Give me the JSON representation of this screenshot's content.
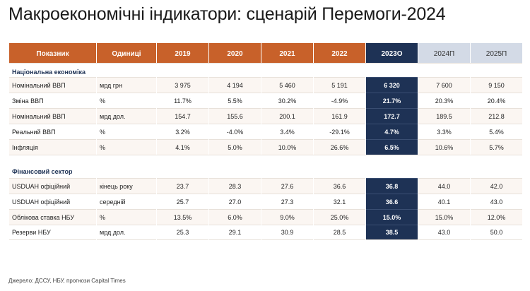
{
  "title": "Макроекономічні індикатори: сценарій Перемоги-2024",
  "header": {
    "indicator": "Показник",
    "units": "Одиниці",
    "years": [
      "2019",
      "2020",
      "2021",
      "2022",
      "2023О",
      "2024П",
      "2025П"
    ]
  },
  "sections": [
    {
      "name": "Національна економіка",
      "rows": [
        {
          "label": "Номінальний ВВП",
          "unit": "мрд грн",
          "values": [
            "3 975",
            "4 194",
            "5 460",
            "5 191",
            "6 320",
            "7 600",
            "9 150"
          ]
        },
        {
          "label": "Зміна ВВП",
          "unit": "%",
          "values": [
            "11.7%",
            "5.5%",
            "30.2%",
            "-4.9%",
            "21.7%",
            "20.3%",
            "20.4%"
          ]
        },
        {
          "label": "Номінальний ВВП",
          "unit": "мрд дол.",
          "values": [
            "154.7",
            "155.6",
            "200.1",
            "161.9",
            "172.7",
            "189.5",
            "212.8"
          ]
        },
        {
          "label": "Реальний ВВП",
          "unit": "%",
          "values": [
            "3.2%",
            "-4.0%",
            "3.4%",
            "-29.1%",
            "4.7%",
            "3.3%",
            "5.4%"
          ]
        },
        {
          "label": "Інфляція",
          "unit": "%",
          "values": [
            "4.1%",
            "5.0%",
            "10.0%",
            "26.6%",
            "6.5%",
            "10.6%",
            "5.7%"
          ]
        }
      ]
    },
    {
      "name": "Фінансовий сектор",
      "rows": [
        {
          "label": "USDUAH офіційний",
          "unit": "кінець року",
          "values": [
            "23.7",
            "28.3",
            "27.6",
            "36.6",
            "36.8",
            "44.0",
            "42.0"
          ]
        },
        {
          "label": "USDUAH офіційний",
          "unit": "середній",
          "values": [
            "25.7",
            "27.0",
            "27.3",
            "32.1",
            "36.6",
            "40.1",
            "43.0"
          ]
        },
        {
          "label": "Облікова ставка НБУ",
          "unit": "%",
          "values": [
            "13.5%",
            "6.0%",
            "9.0%",
            "25.0%",
            "15.0%",
            "15.0%",
            "12.0%"
          ]
        },
        {
          "label": "Резерви НБУ",
          "unit": "мрд дол.",
          "values": [
            "25.3",
            "29.1",
            "30.9",
            "28.5",
            "38.5",
            "43.0",
            "50.0"
          ]
        }
      ]
    }
  ],
  "source": "Джерело: ДССУ, НБУ, прогнози Capital Times",
  "colors": {
    "header_orange": "#c8612a",
    "estimate_navy": "#1e3255",
    "forecast_header": "#d3dae6",
    "row_tint": "#fbf6f2"
  }
}
